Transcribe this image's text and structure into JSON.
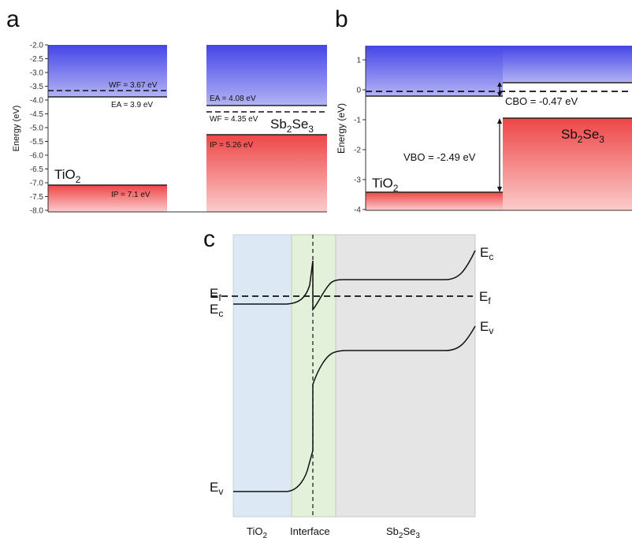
{
  "panels": {
    "a": {
      "label": "a",
      "y_axis_label": "Energy (eV)",
      "y_ticks": [
        "-2.0",
        "-2.5",
        "-3.0",
        "-3.5",
        "-4.0",
        "-4.5",
        "-5.0",
        "-5.5",
        "-6.0",
        "-6.5",
        "-7.0",
        "-7.5",
        "-8.0"
      ],
      "tio2": {
        "name": "TiO",
        "sub": "2",
        "wf": "WF = 3.67 eV",
        "ea": "EA = 3.9 eV",
        "ip": "IP = 7.1 eV"
      },
      "sb2se3": {
        "name_parts": [
          "Sb",
          "2",
          "Se",
          "3"
        ],
        "ea": "EA = 4.08 eV",
        "wf": "WF = 4.35 eV",
        "ip": "IP = 5.26 eV"
      }
    },
    "b": {
      "label": "b",
      "y_axis_label": "Energy (eV)",
      "y_ticks": [
        "1",
        "0",
        "-1",
        "-2",
        "-3",
        "-4"
      ],
      "tio2": {
        "name": "TiO",
        "sub": "2"
      },
      "sb2se3": {
        "name_parts": [
          "Sb",
          "2",
          "Se",
          "3"
        ]
      },
      "cbo": "CBO = -0.47 eV",
      "vbo": "VBO = -2.49 eV"
    },
    "c": {
      "label": "c",
      "regions": {
        "tio2": "TiO",
        "tio2_sub": "2",
        "interface": "Interface",
        "sb2se3_parts": [
          "Sb",
          "2",
          "Se",
          "3"
        ]
      },
      "band_labels": {
        "E": "E",
        "f": "f",
        "c": "c",
        "v": "v"
      }
    }
  },
  "colors": {
    "conduction": "#3b3bdc",
    "valence": "#ee4a4a",
    "region_tio2": "#dce8f3",
    "region_interface": "#e3f0da",
    "region_sb2se3": "#e5e5e5"
  }
}
